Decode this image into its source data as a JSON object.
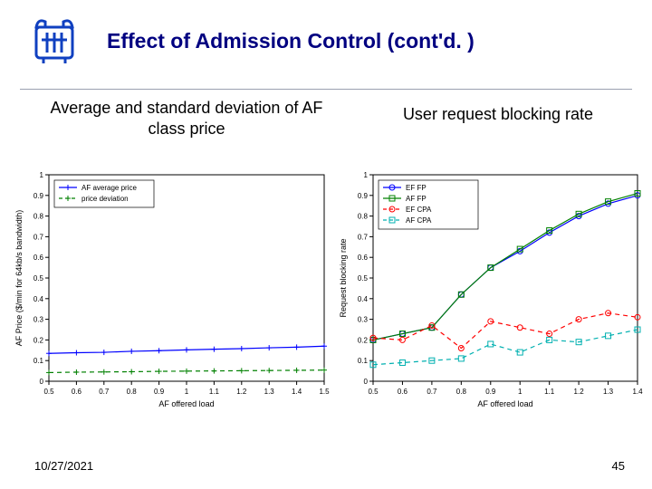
{
  "title": "Effect of Admission Control (cont'd. )",
  "date": "10/27/2021",
  "page_number": "45",
  "subtitle_left": "Average and standard deviation of AF\nclass price",
  "subtitle_right": "User request blocking rate",
  "chart_left": {
    "type": "line",
    "xlabel": "AF offered load",
    "ylabel": "AF Price ($/min for 64kb/s bandwidth)",
    "xlim": [
      0.5,
      1.5
    ],
    "ylim": [
      0,
      1.0
    ],
    "xticks": [
      0.5,
      0.6,
      0.7,
      0.8,
      0.9,
      1.0,
      1.1,
      1.2,
      1.3,
      1.4,
      1.5
    ],
    "yticks": [
      0,
      0.1,
      0.2,
      0.3,
      0.4,
      0.5,
      0.6,
      0.7,
      0.8,
      0.9,
      1.0
    ],
    "label_fontsize": 9,
    "tick_fontsize": 8,
    "axis_color": "#000000",
    "background_color": "#ffffff",
    "legend": {
      "position": "top-left",
      "fontsize": 8,
      "border_color": "#000000",
      "items": [
        {
          "label": "AF average price",
          "color": "#0000ff",
          "dash": "solid",
          "marker": "plus"
        },
        {
          "label": "price deviation",
          "color": "#008000",
          "dash": "dashed",
          "marker": "plus"
        }
      ]
    },
    "series": [
      {
        "name": "AF average price",
        "color": "#0000ff",
        "dash": "solid",
        "marker": "plus",
        "x": [
          0.5,
          0.6,
          0.7,
          0.8,
          0.9,
          1.0,
          1.1,
          1.2,
          1.3,
          1.4,
          1.5
        ],
        "y": [
          0.135,
          0.138,
          0.14,
          0.145,
          0.148,
          0.152,
          0.155,
          0.158,
          0.162,
          0.165,
          0.17
        ]
      },
      {
        "name": "price deviation",
        "color": "#008000",
        "dash": "dashed",
        "marker": "plus",
        "x": [
          0.5,
          0.6,
          0.7,
          0.8,
          0.9,
          1.0,
          1.1,
          1.2,
          1.3,
          1.4,
          1.5
        ],
        "y": [
          0.042,
          0.044,
          0.045,
          0.046,
          0.048,
          0.049,
          0.05,
          0.051,
          0.052,
          0.053,
          0.054
        ]
      }
    ]
  },
  "chart_right": {
    "type": "line",
    "xlabel": "AF offered load",
    "ylabel": "Request blocking rate",
    "xlim": [
      0.5,
      1.4
    ],
    "ylim": [
      0,
      1.0
    ],
    "xticks": [
      0.5,
      0.6,
      0.7,
      0.8,
      0.9,
      1.0,
      1.1,
      1.2,
      1.3,
      1.4
    ],
    "yticks": [
      0,
      0.1,
      0.2,
      0.3,
      0.4,
      0.5,
      0.6,
      0.7,
      0.8,
      0.9,
      1.0
    ],
    "label_fontsize": 9,
    "tick_fontsize": 8,
    "axis_color": "#000000",
    "background_color": "#ffffff",
    "legend": {
      "position": "top-left",
      "fontsize": 8,
      "border_color": "#000000",
      "items": [
        {
          "label": "EF FP",
          "color": "#0000ff",
          "dash": "solid",
          "marker": "circle"
        },
        {
          "label": "AF FP",
          "color": "#008000",
          "dash": "solid",
          "marker": "square"
        },
        {
          "label": "EF CPA",
          "color": "#ff0000",
          "dash": "dashed",
          "marker": "circle"
        },
        {
          "label": "AF CPA",
          "color": "#00b0b0",
          "dash": "dashed",
          "marker": "square"
        }
      ]
    },
    "series": [
      {
        "name": "EF FP",
        "color": "#0000ff",
        "dash": "solid",
        "marker": "circle",
        "x": [
          0.5,
          0.6,
          0.7,
          0.8,
          0.9,
          1.0,
          1.1,
          1.2,
          1.3,
          1.4
        ],
        "y": [
          0.2,
          0.23,
          0.26,
          0.42,
          0.55,
          0.63,
          0.72,
          0.8,
          0.86,
          0.9
        ]
      },
      {
        "name": "AF FP",
        "color": "#008000",
        "dash": "solid",
        "marker": "square",
        "x": [
          0.5,
          0.6,
          0.7,
          0.8,
          0.9,
          1.0,
          1.1,
          1.2,
          1.3,
          1.4
        ],
        "y": [
          0.2,
          0.23,
          0.26,
          0.42,
          0.55,
          0.64,
          0.73,
          0.81,
          0.87,
          0.91
        ]
      },
      {
        "name": "EF CPA",
        "color": "#ff0000",
        "dash": "dashed",
        "marker": "circle",
        "x": [
          0.5,
          0.6,
          0.7,
          0.8,
          0.9,
          1.0,
          1.1,
          1.2,
          1.3,
          1.4
        ],
        "y": [
          0.21,
          0.2,
          0.27,
          0.16,
          0.29,
          0.26,
          0.23,
          0.3,
          0.33,
          0.31
        ]
      },
      {
        "name": "AF CPA",
        "color": "#00b0b0",
        "dash": "dashed",
        "marker": "square",
        "x": [
          0.5,
          0.6,
          0.7,
          0.8,
          0.9,
          1.0,
          1.1,
          1.2,
          1.3,
          1.4
        ],
        "y": [
          0.08,
          0.09,
          0.1,
          0.11,
          0.18,
          0.14,
          0.2,
          0.19,
          0.22,
          0.25
        ]
      }
    ]
  }
}
